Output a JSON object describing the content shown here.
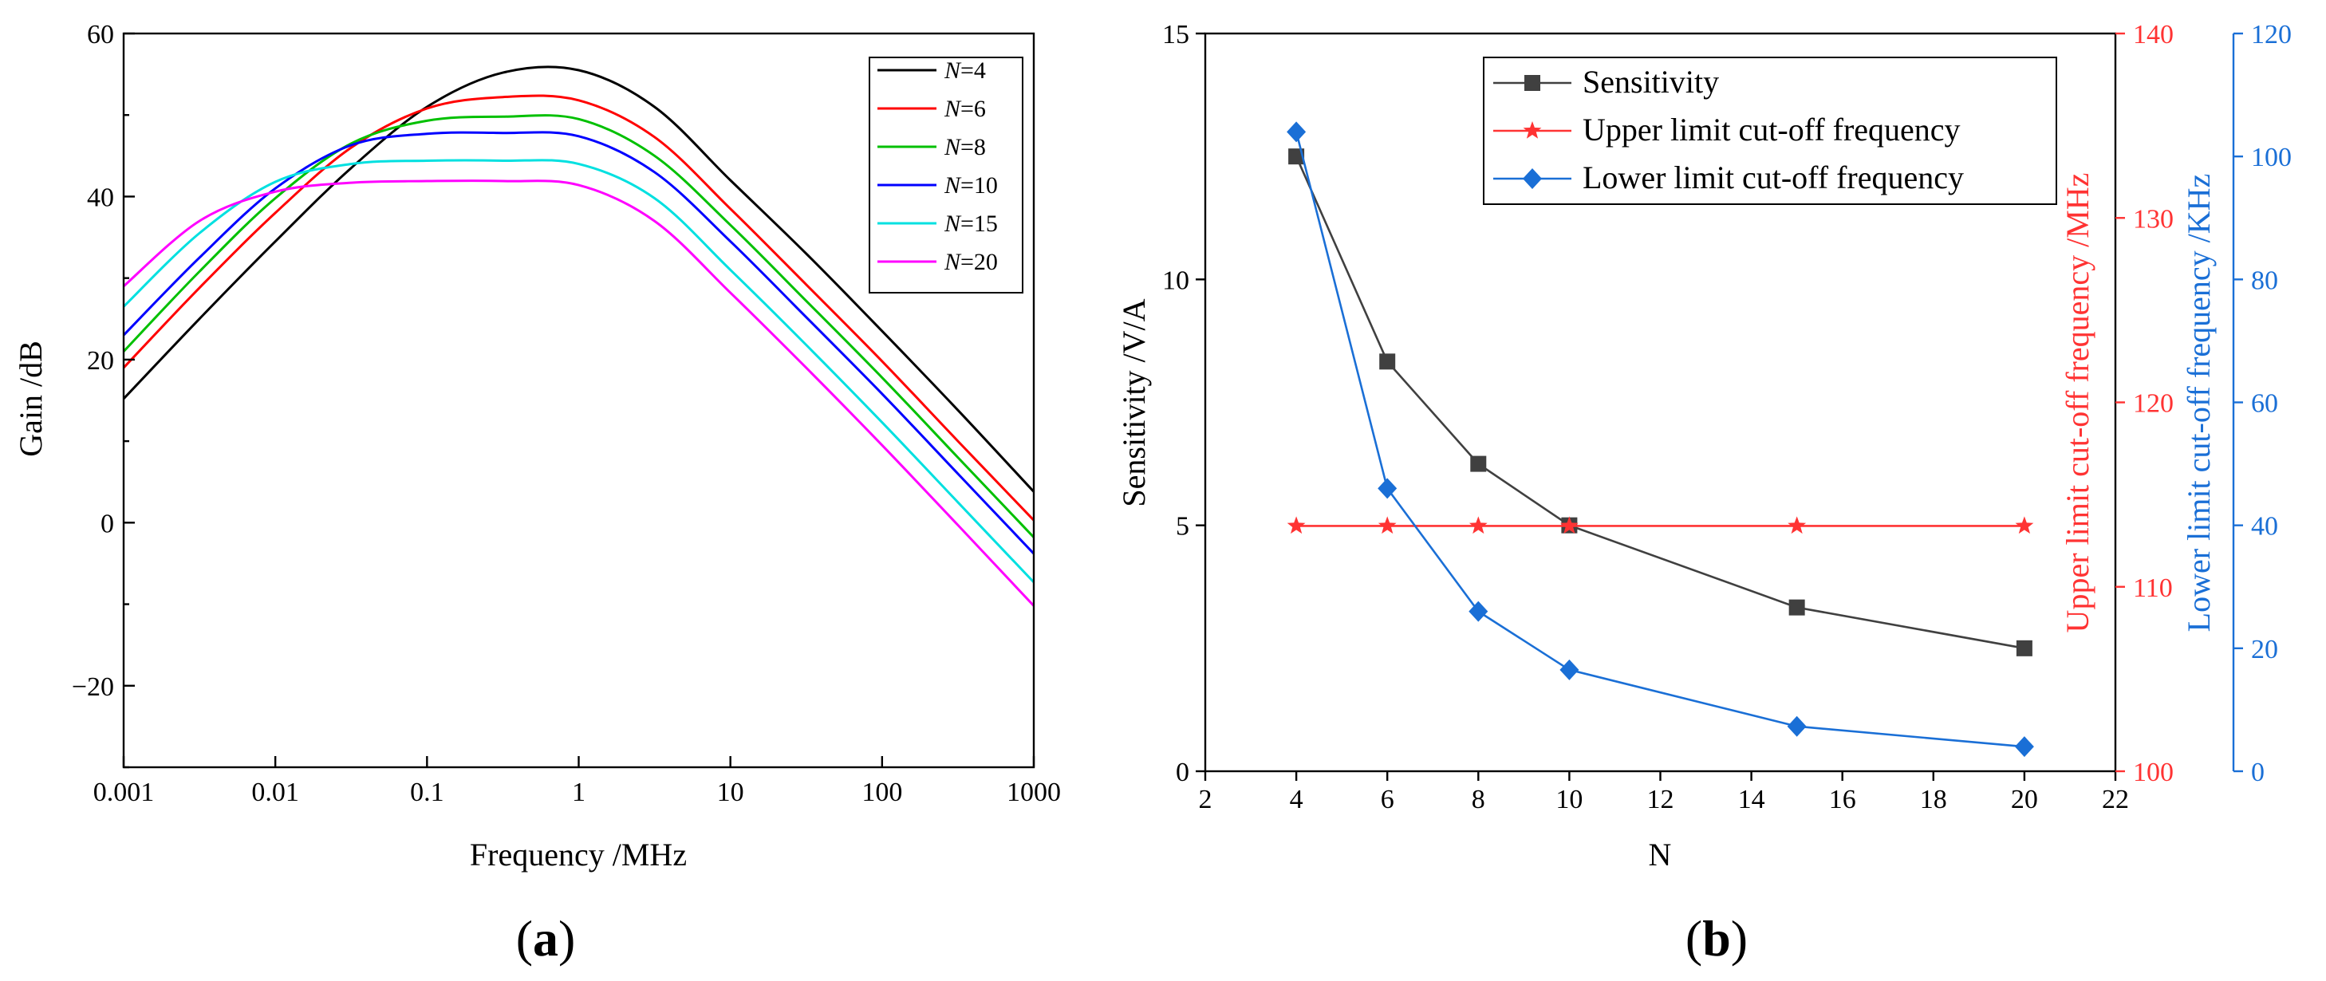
{
  "panels": [
    {
      "label_open": "(",
      "label_letter": "a",
      "label_close": ")"
    },
    {
      "label_open": "(",
      "label_letter": "b",
      "label_close": ")"
    }
  ],
  "chart_data": [
    {
      "type": "line",
      "title": "",
      "xlabel": "Frequency /MHz",
      "ylabel": "Gain /dB",
      "xscale": "log",
      "xlim": [
        0.001,
        1000
      ],
      "ylim": [
        -30,
        60
      ],
      "xticks": [
        "0.001",
        "0.01",
        "0.1",
        "1",
        "10",
        "100",
        "1000"
      ],
      "xtick_values": [
        0.001,
        0.01,
        0.1,
        1,
        10,
        100,
        1000
      ],
      "yticks": [
        "60",
        "40",
        "20",
        "0",
        "−20"
      ],
      "ytick_values": [
        60,
        40,
        20,
        0,
        -20
      ],
      "legend_position": "top-right",
      "series": [
        {
          "prefix": "N",
          "suffix": "=4",
          "name": "N=4",
          "color": "#000000",
          "x": [
            0.001,
            0.00316,
            0.01,
            0.0316,
            0.1,
            0.316,
            1,
            3.16,
            10,
            31.6,
            100,
            316,
            1000
          ],
          "y": [
            15.2,
            25.0,
            34.5,
            43.5,
            51.0,
            55.2,
            55.5,
            51.0,
            42.0,
            33.0,
            23.5,
            13.8,
            3.8
          ]
        },
        {
          "prefix": "N",
          "suffix": "=6",
          "name": "N=6",
          "color": "#ff0000",
          "x": [
            0.001,
            0.00316,
            0.01,
            0.0316,
            0.1,
            0.316,
            1,
            3.16,
            10,
            31.6,
            100,
            316,
            1000
          ],
          "y": [
            19.0,
            28.8,
            38.0,
            46.0,
            50.8,
            52.2,
            51.8,
            47.3,
            38.5,
            29.2,
            19.8,
            10.0,
            0.3
          ]
        },
        {
          "prefix": "N",
          "suffix": "=8",
          "name": "N=8",
          "color": "#00c000",
          "x": [
            0.001,
            0.00316,
            0.01,
            0.0316,
            0.1,
            0.316,
            1,
            3.16,
            10,
            31.6,
            100,
            316,
            1000
          ],
          "y": [
            21.0,
            30.8,
            39.8,
            46.5,
            49.3,
            49.8,
            49.5,
            45.0,
            36.5,
            27.2,
            17.8,
            8.0,
            -1.8
          ]
        },
        {
          "prefix": "N",
          "suffix": "=10",
          "name": "N=10",
          "color": "#0000ff",
          "x": [
            0.001,
            0.00316,
            0.01,
            0.0316,
            0.1,
            0.316,
            1,
            3.16,
            10,
            31.6,
            100,
            316,
            1000
          ],
          "y": [
            23.0,
            32.5,
            41.0,
            46.3,
            47.7,
            47.8,
            47.4,
            43.0,
            34.5,
            25.2,
            15.8,
            6.0,
            -3.8
          ]
        },
        {
          "prefix": "N",
          "suffix": "=15",
          "name": "N=15",
          "color": "#00e0e0",
          "x": [
            0.001,
            0.00316,
            0.01,
            0.0316,
            0.1,
            0.316,
            1,
            3.16,
            10,
            31.6,
            100,
            316,
            1000
          ],
          "y": [
            26.5,
            35.5,
            41.8,
            44.0,
            44.4,
            44.4,
            44.0,
            39.8,
            31.0,
            21.8,
            12.3,
            2.5,
            -7.3
          ]
        },
        {
          "prefix": "N",
          "suffix": "=20",
          "name": "N=20",
          "color": "#ff00ff",
          "x": [
            0.001,
            0.00316,
            0.01,
            0.0316,
            0.1,
            0.316,
            1,
            3.16,
            10,
            31.6,
            100,
            316,
            1000
          ],
          "y": [
            29.0,
            37.0,
            40.6,
            41.7,
            41.9,
            41.9,
            41.4,
            37.0,
            28.2,
            19.0,
            9.5,
            -0.3,
            -10.2
          ]
        }
      ]
    },
    {
      "type": "line",
      "title": "",
      "xlabel": "N",
      "xlim": [
        2,
        22
      ],
      "xticks": [
        "2",
        "4",
        "6",
        "8",
        "10",
        "12",
        "14",
        "16",
        "18",
        "20",
        "22"
      ],
      "xtick_values": [
        2,
        4,
        6,
        8,
        10,
        12,
        14,
        16,
        18,
        20,
        22
      ],
      "y_left": {
        "label": "Sensitivity /V/A",
        "ylim": [
          0,
          15
        ],
        "ticks": [
          "0",
          "5",
          "10",
          "15"
        ],
        "tick_values": [
          0,
          5,
          10,
          15
        ],
        "color": "#000000"
      },
      "y_right1": {
        "label": "Upper limit cut-off frequency /MHz",
        "ylim": [
          100,
          140
        ],
        "ticks": [
          "100",
          "110",
          "120",
          "130",
          "140"
        ],
        "tick_values": [
          100,
          110,
          120,
          130,
          140
        ],
        "color": "#ff3333"
      },
      "y_right2": {
        "label": "Lower limit cut-off frequency /KHz",
        "ylim": [
          0,
          120
        ],
        "ticks": [
          "0",
          "20",
          "40",
          "60",
          "80",
          "100",
          "120"
        ],
        "tick_values": [
          0,
          20,
          40,
          60,
          80,
          100,
          120
        ],
        "color": "#1a6fd6"
      },
      "legend_position": "top-right",
      "x": [
        4,
        6,
        8,
        10,
        15,
        20
      ],
      "series": [
        {
          "name": "Sensitivity",
          "axis": "y_left",
          "marker": "square",
          "color": "#404040",
          "values": [
            12.5,
            8.33,
            6.25,
            5.0,
            3.33,
            2.5
          ]
        },
        {
          "name": "Upper limit cut-off frequency",
          "axis": "y_right1",
          "marker": "star",
          "color": "#ff3333",
          "values": [
            113.3,
            113.3,
            113.3,
            113.3,
            113.3,
            113.3
          ]
        },
        {
          "name": "Lower limit cut-off frequency",
          "axis": "y_right2",
          "marker": "diamond",
          "color": "#1a6fd6",
          "values": [
            104,
            46,
            26,
            16.5,
            7.3,
            4.0
          ]
        }
      ]
    }
  ]
}
